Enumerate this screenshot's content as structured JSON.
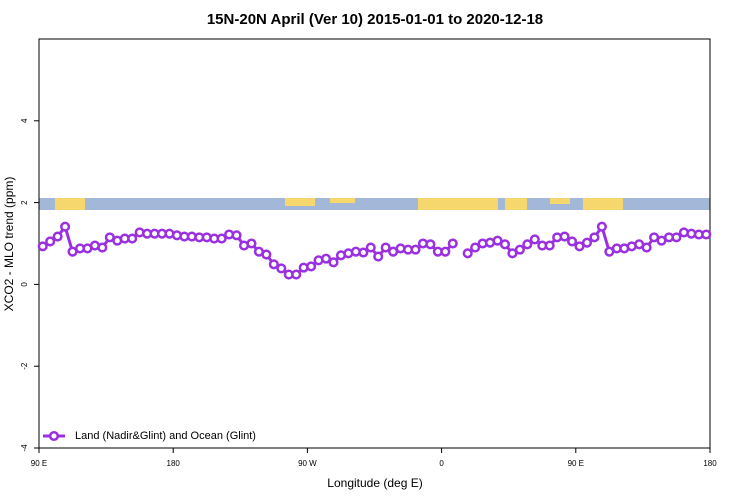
{
  "chart_data": {
    "type": "line",
    "title": "15N-20N April (Ver 10)   2015-01-01 to 2020-12-18",
    "x_label": "Longitude (deg E)",
    "y_label": "XCO2 - MLO trend (ppm)",
    "x": [
      92.5,
      97.5,
      102.5,
      107.5,
      112.5,
      117.5,
      122.5,
      127.5,
      132.5,
      137.5,
      142.5,
      147.5,
      152.5,
      157.5,
      162.5,
      167.5,
      172.5,
      177.5,
      182.5,
      187.5,
      192.5,
      197.5,
      202.5,
      207.5,
      212.5,
      217.5,
      222.5,
      227.5,
      232.5,
      237.5,
      242.5,
      247.5,
      252.5,
      257.5,
      262.5,
      267.5,
      272.5,
      277.5,
      282.5,
      287.5,
      292.5,
      297.5,
      302.5,
      307.5,
      312.5,
      317.5,
      322.5,
      327.5,
      332.5,
      337.5,
      342.5,
      347.5,
      352.5,
      357.5,
      362.5,
      367.5,
      372.5,
      377.5,
      382.5,
      387.5,
      392.5,
      397.5,
      402.5,
      407.5,
      412.5,
      417.5,
      422.5,
      427.5,
      432.5,
      437.5,
      442.5,
      447.5,
      452.5,
      457.5,
      462.5,
      467.5,
      472.5,
      477.5,
      482.5,
      487.5,
      492.5,
      497.5,
      502.5,
      507.5,
      512.5,
      517.5,
      522.5,
      527.5,
      532.5,
      537.5
    ],
    "series": [
      {
        "name": "Land (Nadir&Glint) and Ocean (Glint)",
        "color": "#9b30e0",
        "values": [
          0.93,
          1.05,
          1.17,
          1.41,
          0.8,
          0.88,
          0.88,
          0.95,
          0.9,
          1.15,
          1.07,
          1.12,
          1.12,
          1.27,
          1.24,
          1.24,
          1.24,
          1.24,
          1.2,
          1.17,
          1.17,
          1.15,
          1.15,
          1.12,
          1.12,
          1.22,
          1.2,
          0.95,
          1.0,
          0.8,
          0.73,
          0.49,
          0.39,
          0.24,
          0.24,
          0.41,
          0.44,
          0.59,
          0.63,
          0.54,
          0.71,
          0.76,
          0.8,
          0.78,
          0.9,
          0.68,
          0.9,
          0.8,
          0.88,
          0.85,
          0.85,
          1.0,
          0.98,
          0.8,
          0.8,
          1.0,
          null,
          0.76,
          0.9,
          1.0,
          1.02,
          1.07,
          0.98,
          0.76,
          0.85,
          0.98,
          1.1,
          0.95,
          0.95,
          1.15,
          1.17,
          1.05,
          0.93,
          1.02,
          1.15,
          1.41,
          0.8,
          0.88,
          0.88,
          0.93,
          0.98,
          0.9,
          1.15,
          1.07,
          1.15,
          1.15,
          1.27,
          1.24,
          1.22,
          1.22
        ]
      }
    ],
    "xlim": [
      90,
      540
    ],
    "xticks": [
      {
        "value": 90,
        "label": "90 E"
      },
      180,
      {
        "value": 270,
        "label": "90 W"
      },
      {
        "value": 360,
        "label": "0"
      },
      {
        "value": 450,
        "label": "90 E"
      },
      {
        "value": 540,
        "label": "180"
      }
    ],
    "ylim": [
      -4,
      6
    ],
    "yticks": [
      -4,
      -2,
      0,
      2,
      4
    ],
    "legend": "bottom-left"
  }
}
